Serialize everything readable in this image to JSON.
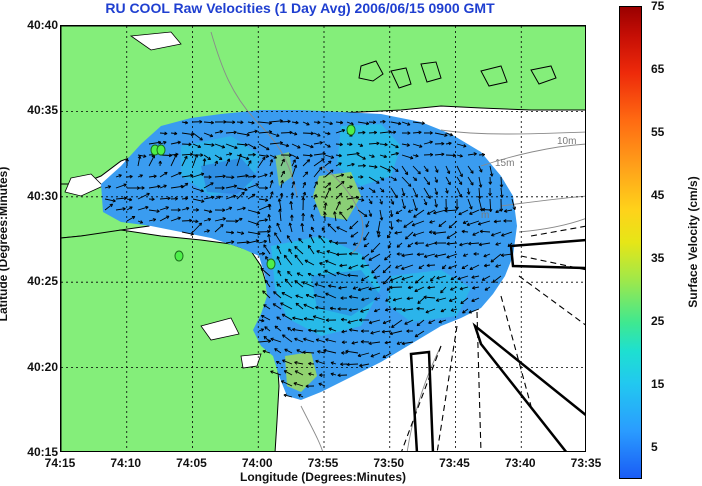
{
  "title": "RU COOL Raw Velocities (1 Day Avg) 2006/06/15 0900 GMT",
  "axes": {
    "x_label": "Longitude (Degrees:Minutes)",
    "y_label": "Latitude (Degrees:Minutes)",
    "x_ticks": [
      "74:15",
      "74:10",
      "74:05",
      "74:00",
      "73:55",
      "73:50",
      "73:45",
      "73:40",
      "73:35"
    ],
    "y_ticks": [
      "40:40",
      "40:35",
      "40:30",
      "40:25",
      "40:20",
      "40:15"
    ]
  },
  "colorbar": {
    "label": "Surface Velocity (cm/s)",
    "ticks": [
      "75",
      "65",
      "55",
      "45",
      "35",
      "25",
      "15",
      "5"
    ],
    "range": [
      0,
      75
    ],
    "colors": [
      "#1a5cf5",
      "#2a9cff",
      "#22c8f0",
      "#1ee0d0",
      "#3fe890",
      "#9fe84a",
      "#e6e617",
      "#ffd21a",
      "#ffa11a",
      "#ff6a12",
      "#ee2a0a",
      "#9a0000"
    ]
  },
  "contour_labels": [
    "10m",
    "15m",
    "m"
  ],
  "colors": {
    "land": "#84ee7a",
    "water": "#ffffff",
    "title": "#1f3fd0",
    "field_main": "#3a9cf0",
    "field_fast": "#22c4e6",
    "field_hot": "#9ad860"
  }
}
